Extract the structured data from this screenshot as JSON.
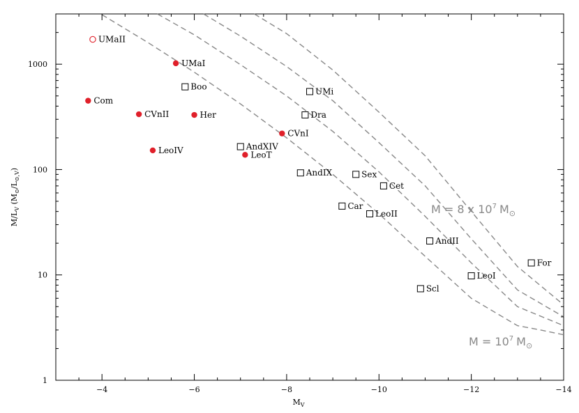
{
  "chart_data": {
    "type": "scatter",
    "title": "",
    "xlabel_parts": [
      "M",
      "V"
    ],
    "ylabel_parts": [
      "M/L",
      "V",
      " (M",
      "⊙",
      "/L",
      "⊙,V",
      ")"
    ],
    "xlim": [
      -3,
      -14
    ],
    "ylim": [
      1,
      3000
    ],
    "y_scale": "log",
    "x_ticks": [
      -4,
      -6,
      -8,
      -10,
      -12,
      -14
    ],
    "x_tick_labels": [
      "−4",
      "−6",
      "−8",
      "−10",
      "−12",
      "−14"
    ],
    "y_ticks": [
      1,
      10,
      100,
      1000
    ],
    "y_tick_labels": [
      "1",
      "10",
      "100",
      "1000"
    ],
    "grid": false,
    "legend": "none",
    "colors": {
      "filled": "#e0202a",
      "open_red": "#e0202a",
      "square": "#000000",
      "curve": "#888888"
    },
    "series": [
      {
        "marker": "filled-circle",
        "points": [
          {
            "label": "UMaI",
            "x": -5.6,
            "y": 1020
          },
          {
            "label": "Com",
            "x": -3.7,
            "y": 450
          },
          {
            "label": "CVnII",
            "x": -4.8,
            "y": 335
          },
          {
            "label": "Her",
            "x": -6.0,
            "y": 330
          },
          {
            "label": "CVnI",
            "x": -7.9,
            "y": 220
          },
          {
            "label": "LeoIV",
            "x": -5.1,
            "y": 152
          },
          {
            "label": "LeoT",
            "x": -7.1,
            "y": 138
          }
        ]
      },
      {
        "marker": "open-circle",
        "points": [
          {
            "label": "UMaII",
            "x": -3.8,
            "y": 1720
          }
        ]
      },
      {
        "marker": "open-square",
        "points": [
          {
            "label": "Boo",
            "x": -5.8,
            "y": 610
          },
          {
            "label": "UMi",
            "x": -8.5,
            "y": 550
          },
          {
            "label": "Dra",
            "x": -8.4,
            "y": 330
          },
          {
            "label": "AndXIV",
            "x": -7.0,
            "y": 165
          },
          {
            "label": "AndIX",
            "x": -8.3,
            "y": 93
          },
          {
            "label": "Sex",
            "x": -9.5,
            "y": 90
          },
          {
            "label": "Cet",
            "x": -10.1,
            "y": 70
          },
          {
            "label": "Car",
            "x": -9.2,
            "y": 45
          },
          {
            "label": "LeoII",
            "x": -9.8,
            "y": 38
          },
          {
            "label": "AndII",
            "x": -11.1,
            "y": 21
          },
          {
            "label": "For",
            "x": -13.3,
            "y": 13
          },
          {
            "label": "LeoI",
            "x": -12.0,
            "y": 9.8
          },
          {
            "label": "Scl",
            "x": -10.9,
            "y": 7.4
          }
        ]
      }
    ],
    "curves": [
      {
        "style": "dashed",
        "points": [
          [
            -4.0,
            2950
          ],
          [
            -5.0,
            1600
          ],
          [
            -6.0,
            840
          ],
          [
            -7.0,
            420
          ],
          [
            -8.0,
            200
          ],
          [
            -9.0,
            90
          ],
          [
            -10.0,
            38
          ],
          [
            -11.0,
            15
          ],
          [
            -12.0,
            6.0
          ],
          [
            -13.0,
            3.3
          ],
          [
            -13.5,
            3.0
          ],
          [
            -14.0,
            2.7
          ]
        ]
      },
      {
        "style": "dashed",
        "points": [
          [
            -5.2,
            3000
          ],
          [
            -6.0,
            1900
          ],
          [
            -7.0,
            990
          ],
          [
            -8.0,
            500
          ],
          [
            -9.0,
            230
          ],
          [
            -10.0,
            95
          ],
          [
            -11.0,
            36
          ],
          [
            -12.0,
            13
          ],
          [
            -13.0,
            5.0
          ],
          [
            -14.0,
            3.3
          ]
        ]
      },
      {
        "style": "dashed",
        "points": [
          [
            -6.2,
            3000
          ],
          [
            -7.0,
            1850
          ],
          [
            -8.0,
            950
          ],
          [
            -9.0,
            450
          ],
          [
            -10.0,
            180
          ],
          [
            -11.0,
            70
          ],
          [
            -12.0,
            22
          ],
          [
            -13.0,
            7.2
          ],
          [
            -14.0,
            4.0
          ]
        ]
      },
      {
        "style": "dashed",
        "points": [
          [
            -7.3,
            3000
          ],
          [
            -8.0,
            1950
          ],
          [
            -9.0,
            880
          ],
          [
            -10.0,
            350
          ],
          [
            -11.0,
            135
          ],
          [
            -12.0,
            40
          ],
          [
            -13.0,
            12
          ],
          [
            -14.0,
            5.2
          ]
        ]
      }
    ],
    "annotations": [
      {
        "text": "M = 8 x 10",
        "sup": "7",
        "unit": "M",
        "sub": "⊙",
        "x": -11.1,
        "y": 55
      },
      {
        "text": "M = 10",
        "sup": "7",
        "unit": "M",
        "sub": "⊙",
        "x": -11.9,
        "y": 2.8
      }
    ]
  }
}
